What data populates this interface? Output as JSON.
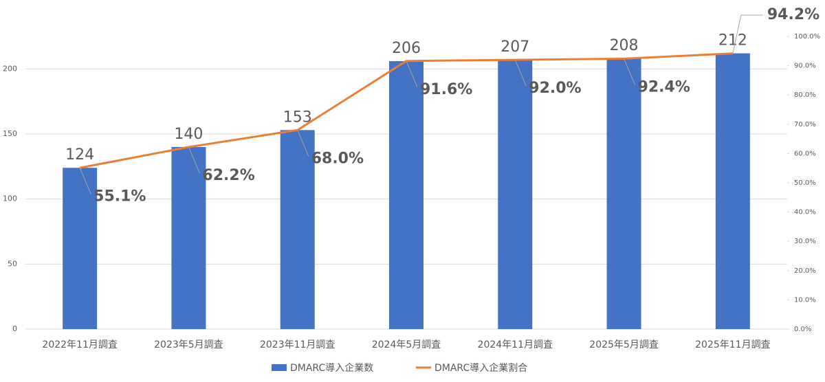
{
  "chart_data": {
    "type": "bar",
    "categories": [
      "2022年11月調査",
      "2023年5月調査",
      "2023年11月調査",
      "2024年5月調査",
      "2024年11月調査",
      "2025年5月調査",
      "2025年11月調査"
    ],
    "series": [
      {
        "name": "DMARC導入企業数",
        "type": "bar",
        "color": "#4472c4",
        "values": [
          124,
          140,
          153,
          206,
          207,
          208,
          212
        ]
      },
      {
        "name": "DMARC導入企業割合",
        "type": "line",
        "axis": "y2",
        "color": "#ed7d31",
        "values": [
          55.1,
          62.2,
          68.0,
          91.6,
          92.0,
          92.4,
          94.2
        ],
        "value_labels": [
          "55.1%",
          "62.2%",
          "68.0%",
          "91.6%",
          "92.0%",
          "92.4%",
          "94.2%"
        ]
      }
    ],
    "ylim": [
      0,
      225
    ],
    "yticks": [
      0,
      50,
      100,
      150,
      200
    ],
    "y2lim": [
      0,
      100
    ],
    "y2ticks": [
      {
        "value": 0,
        "label": "0.0%"
      },
      {
        "value": 10,
        "label": "10.0%"
      },
      {
        "value": 20,
        "label": "20.0%"
      },
      {
        "value": 30,
        "label": "30.0%"
      },
      {
        "value": 40,
        "label": "40.0%"
      },
      {
        "value": 50,
        "label": "50.0%"
      },
      {
        "value": 60,
        "label": "60.0%"
      },
      {
        "value": 70,
        "label": "70.0%"
      },
      {
        "value": 80,
        "label": "80.0%"
      },
      {
        "value": 90,
        "label": "90.0%"
      },
      {
        "value": 100,
        "label": "100.0%"
      }
    ],
    "grid": true,
    "legend": "bottom"
  }
}
